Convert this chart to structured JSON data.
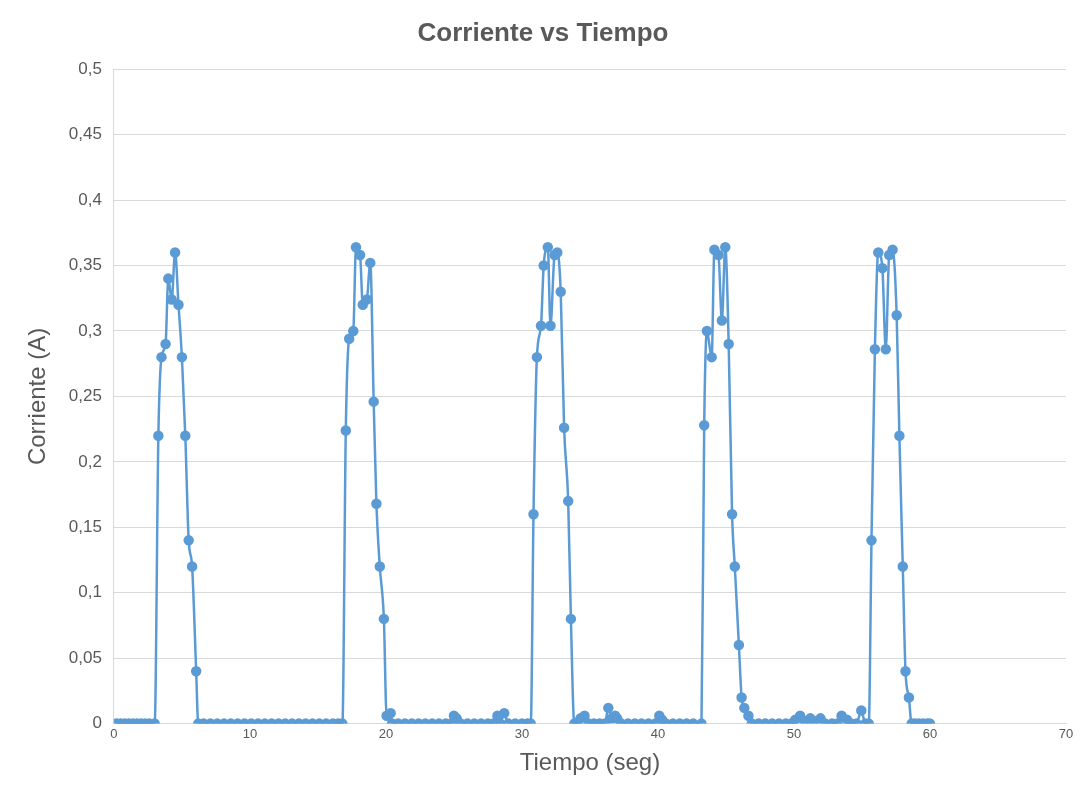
{
  "chart_data": {
    "type": "line",
    "title": "Corriente vs Tiempo",
    "xlabel": "Tiempo (seg)",
    "ylabel": "Corriente (A)",
    "xlim": [
      0,
      70
    ],
    "xticks": [
      0,
      10,
      20,
      30,
      40,
      50,
      60,
      70
    ],
    "ylim": [
      0,
      0.5
    ],
    "yticks": [
      0,
      {
        "value": 0.05,
        "label": "0,05"
      },
      {
        "value": 0.1,
        "label": "0,1"
      },
      {
        "value": 0.15,
        "label": "0,15"
      },
      {
        "value": 0.2,
        "label": "0,2"
      },
      {
        "value": 0.25,
        "label": "0,25"
      },
      {
        "value": 0.3,
        "label": "0,3"
      },
      {
        "value": 0.35,
        "label": "0,35"
      },
      {
        "value": 0.4,
        "label": "0,4"
      },
      {
        "value": 0.45,
        "label": "0,45"
      },
      {
        "value": 0.5,
        "label": "0,5"
      }
    ],
    "grid": "y",
    "legend": false,
    "marker": "circle",
    "line_style": "solid",
    "series": [
      {
        "color": "#5b9bd5",
        "x": [
          0.2,
          0.5,
          0.8,
          1.1,
          1.4,
          1.7,
          2.0,
          2.3,
          2.6,
          3.0,
          3.27,
          3.5,
          3.8,
          4.0,
          4.25,
          4.5,
          4.75,
          5.0,
          5.25,
          5.5,
          5.75,
          6.05,
          6.2,
          6.6,
          7.1,
          7.6,
          8.1,
          8.6,
          9.1,
          9.6,
          10.1,
          10.6,
          11.1,
          11.6,
          12.1,
          12.6,
          13.1,
          13.6,
          14.1,
          14.6,
          15.1,
          15.6,
          16.1,
          16.5,
          16.8,
          17.05,
          17.3,
          17.6,
          17.8,
          18.1,
          18.3,
          18.6,
          18.85,
          19.1,
          19.3,
          19.55,
          19.85,
          20.05,
          20.35,
          20.45,
          20.9,
          21.4,
          21.9,
          22.4,
          22.9,
          23.4,
          23.9,
          24.4,
          24.8,
          25.0,
          25.2,
          25.5,
          26.0,
          26.5,
          27.0,
          27.5,
          27.9,
          28.2,
          28.4,
          28.7,
          29.0,
          29.5,
          30.0,
          30.4,
          30.65,
          30.85,
          31.1,
          31.4,
          31.6,
          31.9,
          32.1,
          32.4,
          32.6,
          32.85,
          33.1,
          33.4,
          33.6,
          33.85,
          34.05,
          34.3,
          34.6,
          34.9,
          35.3,
          35.7,
          36.1,
          36.35,
          36.6,
          36.85,
          37.0,
          37.3,
          37.8,
          38.3,
          38.8,
          39.3,
          39.8,
          40.1,
          40.3,
          40.6,
          41.1,
          41.6,
          42.1,
          42.6,
          43.2,
          43.4,
          43.6,
          43.95,
          44.15,
          44.45,
          44.7,
          44.95,
          45.2,
          45.45,
          45.65,
          45.95,
          46.15,
          46.35,
          46.65,
          46.9,
          47.4,
          47.9,
          48.4,
          48.9,
          49.4,
          49.8,
          50.1,
          50.45,
          50.8,
          51.2,
          51.5,
          51.95,
          52.3,
          52.8,
          53.2,
          53.5,
          53.9,
          54.2,
          54.6,
          54.95,
          55.25,
          55.5,
          55.7,
          55.95,
          56.2,
          56.5,
          56.75,
          57.0,
          57.25,
          57.55,
          57.75,
          58.0,
          58.2,
          58.45,
          58.65,
          58.9,
          59.2,
          59.5,
          59.8,
          60.0
        ],
        "values": [
          0,
          0,
          0,
          0,
          0,
          0,
          0,
          0,
          0,
          0,
          0.22,
          0.28,
          0.29,
          0.34,
          0.324,
          0.36,
          0.32,
          0.28,
          0.22,
          0.14,
          0.12,
          0.04,
          0,
          0,
          0,
          0,
          0,
          0,
          0,
          0,
          0,
          0,
          0,
          0,
          0,
          0,
          0,
          0,
          0,
          0,
          0,
          0,
          0,
          0,
          0,
          0.224,
          0.294,
          0.3,
          0.364,
          0.358,
          0.32,
          0.324,
          0.352,
          0.246,
          0.168,
          0.12,
          0.08,
          0.006,
          0.008,
          0,
          0,
          0,
          0,
          0,
          0,
          0,
          0,
          0,
          0,
          0.006,
          0.004,
          0,
          0,
          0,
          0,
          0,
          0,
          0.006,
          0,
          0.008,
          0,
          0,
          0,
          0,
          0,
          0.16,
          0.28,
          0.304,
          0.35,
          0.364,
          0.304,
          0.358,
          0.36,
          0.33,
          0.226,
          0.17,
          0.08,
          0,
          0,
          0.004,
          0.006,
          0,
          0,
          0,
          0,
          0.012,
          0.004,
          0.006,
          0.004,
          0,
          0,
          0,
          0,
          0,
          0,
          0.006,
          0.003,
          0,
          0,
          0,
          0,
          0,
          0,
          0.228,
          0.3,
          0.28,
          0.362,
          0.358,
          0.308,
          0.364,
          0.29,
          0.16,
          0.12,
          0.06,
          0.02,
          0.012,
          0.006,
          0,
          0,
          0,
          0,
          0,
          0,
          0,
          0.003,
          0.006,
          0.002,
          0.004,
          0.002,
          0.004,
          0,
          0,
          0,
          0.006,
          0.003,
          0,
          0,
          0.01,
          0,
          0,
          0.14,
          0.286,
          0.36,
          0.348,
          0.286,
          0.358,
          0.362,
          0.312,
          0.22,
          0.12,
          0.04,
          0.02,
          0,
          0,
          0,
          0,
          0,
          0
        ]
      }
    ]
  }
}
